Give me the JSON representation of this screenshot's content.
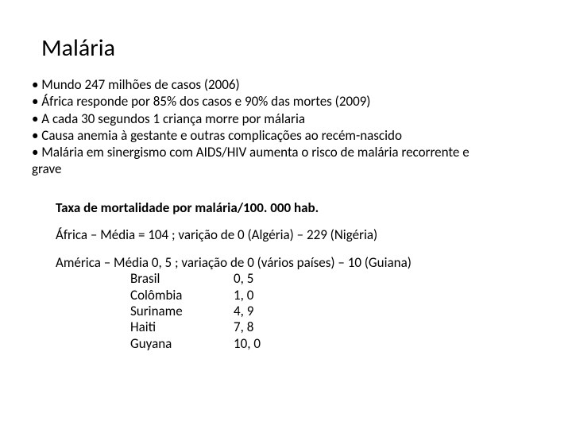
{
  "title": "Malária",
  "bullets": [
    "• Mundo 247 milhões de casos (2006)",
    "• África responde por 85% dos casos e 90% das mortes (2009)",
    "• A cada 30 segundos 1 criança morre por málaria",
    "• Causa anemia à gestante  e outras complicações ao recém-nascido",
    "• Malária em sinergismo com AIDS/HIV aumenta o risco de malária recorrente e",
    "grave"
  ],
  "section": {
    "heading": "Taxa de mortalidade por malária/100. 000 hab.",
    "africa": "África – Média = 104 ; varição de 0 (Algéria) – 229 (Nigéria)",
    "america": "América – Média 0, 5 ;  variação de 0 (vários países) – 10 (Guiana)",
    "countries": [
      {
        "name": "Brasil",
        "value": "0, 5"
      },
      {
        "name": "Colômbia",
        "value": "1, 0"
      },
      {
        "name": "Suriname",
        "value": "4, 9"
      },
      {
        "name": "Haiti",
        "value": "7, 8"
      },
      {
        "name": "Guyana",
        "value": "10, 0"
      }
    ]
  }
}
